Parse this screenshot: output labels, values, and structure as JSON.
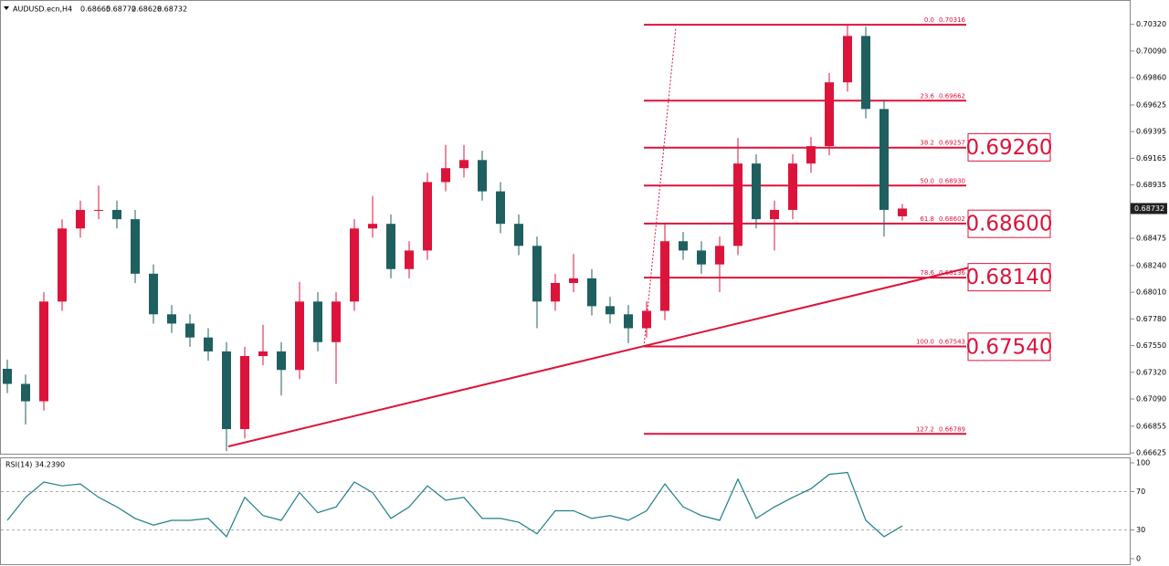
{
  "chart_data": [
    {
      "type": "candlestick",
      "title": "AUDUSD.ecn,H4",
      "up_color": "#dc143c",
      "down_color": "#1f5f5f",
      "open": [
        0.6735,
        0.6722,
        0.6707,
        0.6793,
        0.6856,
        0.6872,
        0.6872,
        0.6864,
        0.6817,
        0.6782,
        0.6774,
        0.6762,
        0.675,
        0.6683,
        0.6746,
        0.675,
        0.6734,
        0.6793,
        0.6758,
        0.6793,
        0.6856,
        0.686,
        0.6821,
        0.6837,
        0.6896,
        0.6908,
        0.6915,
        0.6888,
        0.686,
        0.6841,
        0.6793,
        0.6809,
        0.6813,
        0.6789,
        0.6782,
        0.677,
        0.6785,
        0.6845,
        0.6837,
        0.6825,
        0.6841,
        0.6912,
        0.6864,
        0.6872,
        0.6912,
        0.6927,
        0.6982,
        0.7022,
        0.6959,
        0.68665
      ],
      "high": [
        0.6743,
        0.673,
        0.6801,
        0.6864,
        0.688,
        0.6893,
        0.688,
        0.6872,
        0.6825,
        0.679,
        0.6782,
        0.677,
        0.6758,
        0.6754,
        0.6773,
        0.6758,
        0.681,
        0.6801,
        0.6801,
        0.6864,
        0.6884,
        0.6868,
        0.6845,
        0.6904,
        0.6928,
        0.6928,
        0.6923,
        0.6896,
        0.6868,
        0.6849,
        0.6817,
        0.6834,
        0.6821,
        0.6797,
        0.679,
        0.6793,
        0.686,
        0.6853,
        0.6845,
        0.6849,
        0.6934,
        0.692,
        0.688,
        0.692,
        0.6935,
        0.699,
        0.7031,
        0.703,
        0.6967,
        0.68772
      ],
      "low": [
        0.6714,
        0.6687,
        0.6699,
        0.6785,
        0.6848,
        0.6864,
        0.6856,
        0.6809,
        0.6774,
        0.6766,
        0.6754,
        0.6742,
        0.6664,
        0.6675,
        0.6738,
        0.6712,
        0.6726,
        0.675,
        0.6722,
        0.6785,
        0.6848,
        0.6813,
        0.6813,
        0.6829,
        0.6888,
        0.69,
        0.688,
        0.6852,
        0.6833,
        0.677,
        0.6785,
        0.6801,
        0.6781,
        0.6774,
        0.6757,
        0.6762,
        0.6777,
        0.6829,
        0.6817,
        0.6801,
        0.6833,
        0.6856,
        0.6837,
        0.6864,
        0.6904,
        0.6919,
        0.6974,
        0.6951,
        0.6849,
        0.68628
      ],
      "close": [
        0.6722,
        0.6707,
        0.6793,
        0.6856,
        0.6872,
        0.6872,
        0.6864,
        0.6817,
        0.6782,
        0.6774,
        0.6762,
        0.675,
        0.6683,
        0.6746,
        0.675,
        0.6734,
        0.6793,
        0.6758,
        0.6793,
        0.6856,
        0.686,
        0.6821,
        0.6837,
        0.6896,
        0.6908,
        0.6915,
        0.6888,
        0.686,
        0.6841,
        0.6793,
        0.6809,
        0.6813,
        0.6789,
        0.6782,
        0.677,
        0.6785,
        0.6845,
        0.6837,
        0.6825,
        0.6841,
        0.6912,
        0.6864,
        0.6872,
        0.6912,
        0.6927,
        0.6982,
        0.7022,
        0.6959,
        0.6872,
        0.68732
      ],
      "ylim": [
        0.6661,
        0.7053
      ],
      "yticks": [
        {
          "value": 0.7032,
          "label": "0.70320"
        },
        {
          "value": 0.7009,
          "label": "0.70090"
        },
        {
          "value": 0.6986,
          "label": "0.69860"
        },
        {
          "value": 0.69625,
          "label": "0.69625"
        },
        {
          "value": 0.69395,
          "label": "0.69395"
        },
        {
          "value": 0.69165,
          "label": "0.69165"
        },
        {
          "value": 0.68935,
          "label": "0.68935"
        },
        {
          "value": 0.68705,
          "label": "0.68705"
        },
        {
          "value": 0.68475,
          "label": "0.68475"
        },
        {
          "value": 0.6824,
          "label": "0.68240"
        },
        {
          "value": 0.6801,
          "label": "0.68010"
        },
        {
          "value": 0.6778,
          "label": "0.67780"
        },
        {
          "value": 0.6755,
          "label": "0.67550"
        },
        {
          "value": 0.6732,
          "label": "0.67320"
        },
        {
          "value": 0.6709,
          "label": "0.67090"
        },
        {
          "value": 0.66855,
          "label": "0.66855"
        },
        {
          "value": 0.66625,
          "label": "0.66625"
        }
      ],
      "fib_levels": [
        {
          "level": "0.0",
          "price": {
            "value": 0.70316,
            "label": "0.70316"
          }
        },
        {
          "level": "23.6",
          "price": {
            "value": 0.69662,
            "label": "0.69662"
          }
        },
        {
          "level": "38.2",
          "price": {
            "value": 0.69257,
            "label": "0.69257"
          }
        },
        {
          "level": "50.0",
          "price": {
            "value": 0.6893,
            "label": "0.68930"
          }
        },
        {
          "level": "61.8",
          "price": {
            "value": 0.68602,
            "label": "0.68602"
          }
        },
        {
          "level": "78.6",
          "price": {
            "value": 0.68136,
            "label": "0.68136"
          }
        },
        {
          "level": "100.0",
          "price": {
            "value": 0.67543,
            "label": "0.67543"
          }
        },
        {
          "level": "127.2",
          "price": {
            "value": 0.66789,
            "label": "0.66789"
          }
        }
      ],
      "key_levels": [
        {
          "value": 0.6926,
          "label": "0.69260"
        },
        {
          "value": 0.686,
          "label": "0.68600"
        },
        {
          "value": 0.6814,
          "label": "0.68140"
        },
        {
          "value": 0.6754,
          "label": "0.67540"
        }
      ]
    },
    {
      "type": "line",
      "title": "RSI(14)",
      "value_label": "34.2390",
      "color": "#1f7f86",
      "values": [
        40,
        64,
        80,
        76,
        78,
        64,
        54,
        42,
        35,
        40,
        40,
        42,
        23,
        64,
        45,
        40,
        69,
        48,
        54,
        80,
        69,
        42,
        54,
        76,
        61,
        64,
        42,
        42,
        38,
        26,
        50,
        50,
        42,
        45,
        40,
        50,
        78,
        54,
        45,
        40,
        83,
        42,
        54,
        64,
        73,
        88,
        90,
        40,
        23,
        34.239
      ],
      "ylim": [
        0,
        100
      ],
      "yticks": [
        0,
        30,
        70,
        100
      ],
      "levels": [
        30,
        70
      ]
    }
  ]
}
